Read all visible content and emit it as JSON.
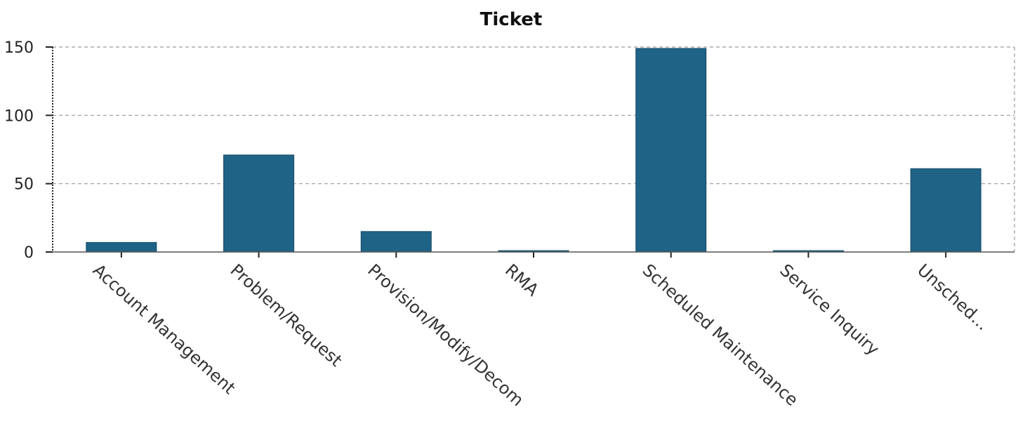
{
  "chart_data": {
    "type": "bar",
    "title": "Ticket",
    "xlabel": "",
    "ylabel": "",
    "categories": [
      "Account Management",
      "Problem/Request",
      "Provision/Modify/Decom",
      "RMA",
      "Scheduled Maintenance",
      "Service Inquiry",
      "Unsched..."
    ],
    "values": [
      7,
      71,
      15,
      1,
      149,
      1,
      61
    ],
    "ylim": [
      0,
      150
    ],
    "yticks": [
      0,
      50,
      100,
      150
    ],
    "grid": true,
    "legend": "none",
    "bar_color": "#1f6387"
  }
}
